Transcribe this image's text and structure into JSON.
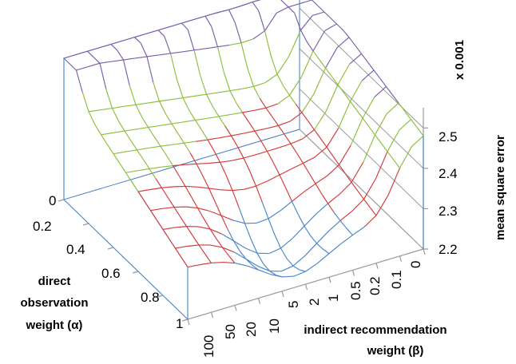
{
  "chart_data": {
    "type": "surface",
    "multiplier_label": "x 0.001",
    "zlabel": "mean square error",
    "xlabel_lines": [
      "direct",
      "observation",
      "weight (α)"
    ],
    "ylabel_lines": [
      "indirect recommendation",
      "weight (β)"
    ],
    "x_ticks": [
      "0",
      "0.2",
      "0.4",
      "0.6",
      "0.8",
      "1"
    ],
    "y_ticks": [
      "100",
      "50",
      "20",
      "10",
      "5",
      "2",
      "1",
      "0.5",
      "0.2",
      "0.1",
      "0"
    ],
    "z_ticks": [
      "2.5",
      "2.4",
      "2.3",
      "2.2"
    ],
    "zlim": [
      2.2,
      2.55
    ],
    "band_colors": [
      "#4a86c8",
      "#d4393b",
      "#8cbf3a",
      "#7a5ea8"
    ],
    "surface_points": [
      {
        "alpha": 0.0,
        "beta": 100,
        "mse": 2.55
      },
      {
        "alpha": 0.0,
        "beta": 0,
        "mse": 2.55
      },
      {
        "alpha": 0.2,
        "beta": 20,
        "mse": 2.42
      },
      {
        "alpha": 0.5,
        "beta": 2,
        "mse": 2.25
      },
      {
        "alpha": 0.5,
        "beta": 0.5,
        "mse": 2.3
      },
      {
        "alpha": 0.8,
        "beta": 5,
        "mse": 2.3
      },
      {
        "alpha": 0.9,
        "beta": 1,
        "mse": 2.2
      },
      {
        "alpha": 1.0,
        "beta": 0.1,
        "mse": 2.55
      },
      {
        "alpha": 1.0,
        "beta": 0,
        "mse": 2.55
      }
    ]
  }
}
